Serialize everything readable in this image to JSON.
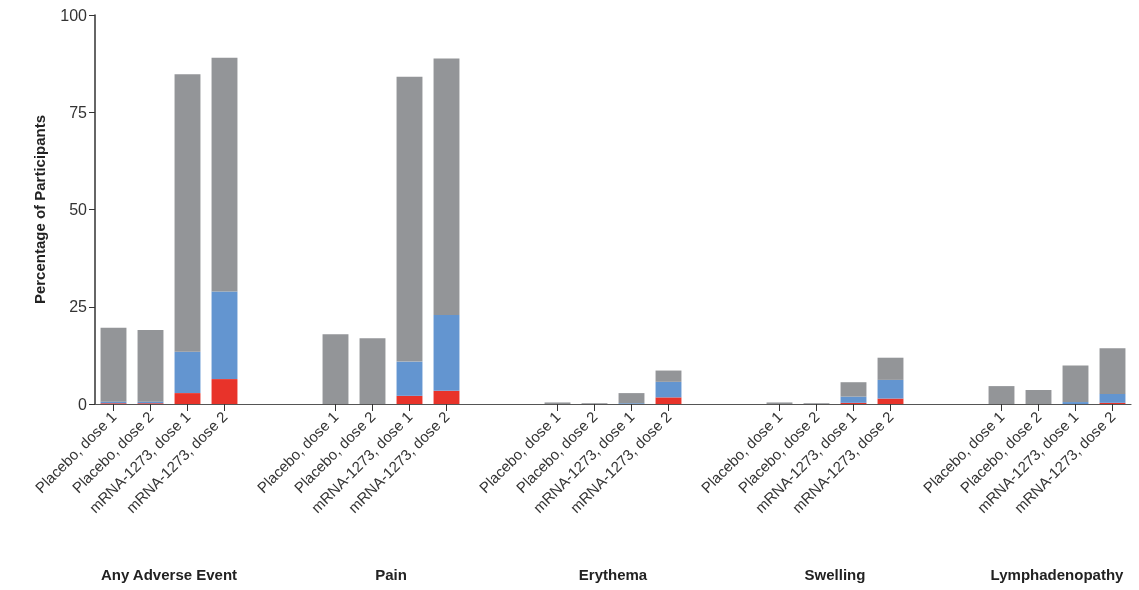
{
  "chart_data": {
    "type": "bar",
    "stacked": true,
    "ylabel": "Percentage of Participants",
    "ylim": [
      0,
      100
    ],
    "yticks": [
      0,
      25,
      50,
      75,
      100
    ],
    "grid": false,
    "categories": [
      "Placebo, dose 1",
      "Placebo, dose 2",
      "mRNA-1273, dose 1",
      "mRNA-1273, dose 2",
      null,
      null,
      "Placebo, dose 1",
      "Placebo, dose 2",
      "mRNA-1273, dose 1",
      "mRNA-1273, dose 2",
      null,
      null,
      "Placebo, dose 1",
      "Placebo, dose 2",
      "mRNA-1273, dose 1",
      "mRNA-1273, dose 2",
      null,
      null,
      "Placebo, dose 1",
      "Placebo, dose 2",
      "mRNA-1273, dose 1",
      "mRNA-1273, dose 2",
      null,
      null,
      "Placebo, dose 1",
      "Placebo, dose 2",
      "mRNA-1273, dose 1",
      "mRNA-1273, dose 2"
    ],
    "series": [
      {
        "color": "#e8332a",
        "values": [
          0.2,
          0.2,
          2.8,
          6.4,
          null,
          null,
          0,
          0,
          2.1,
          3.4,
          null,
          null,
          0,
          0,
          0,
          1.7,
          null,
          null,
          0,
          0,
          0.3,
          1.4,
          null,
          null,
          0,
          0,
          0,
          0.3
        ]
      },
      {
        "color": "#6395d0",
        "values": [
          0.4,
          0.4,
          10.6,
          22.5,
          null,
          null,
          0,
          0,
          8.8,
          19.5,
          null,
          null,
          0,
          0,
          0.2,
          4.0,
          null,
          null,
          0,
          0,
          1.6,
          4.8,
          null,
          null,
          0,
          0,
          0.5,
          2.3
        ]
      },
      {
        "color": "#939598",
        "values": [
          19.0,
          18.4,
          71.4,
          60.1,
          null,
          null,
          17.9,
          16.9,
          73.2,
          65.9,
          null,
          null,
          0.4,
          0.2,
          2.6,
          2.9,
          null,
          null,
          0.4,
          0.2,
          3.7,
          5.7,
          null,
          null,
          4.6,
          3.6,
          9.4,
          11.7
        ]
      }
    ],
    "annotations": [
      "Any Adverse Event",
      "Pain",
      "Erythema",
      "Swelling",
      "Lymphadenopathy"
    ]
  }
}
